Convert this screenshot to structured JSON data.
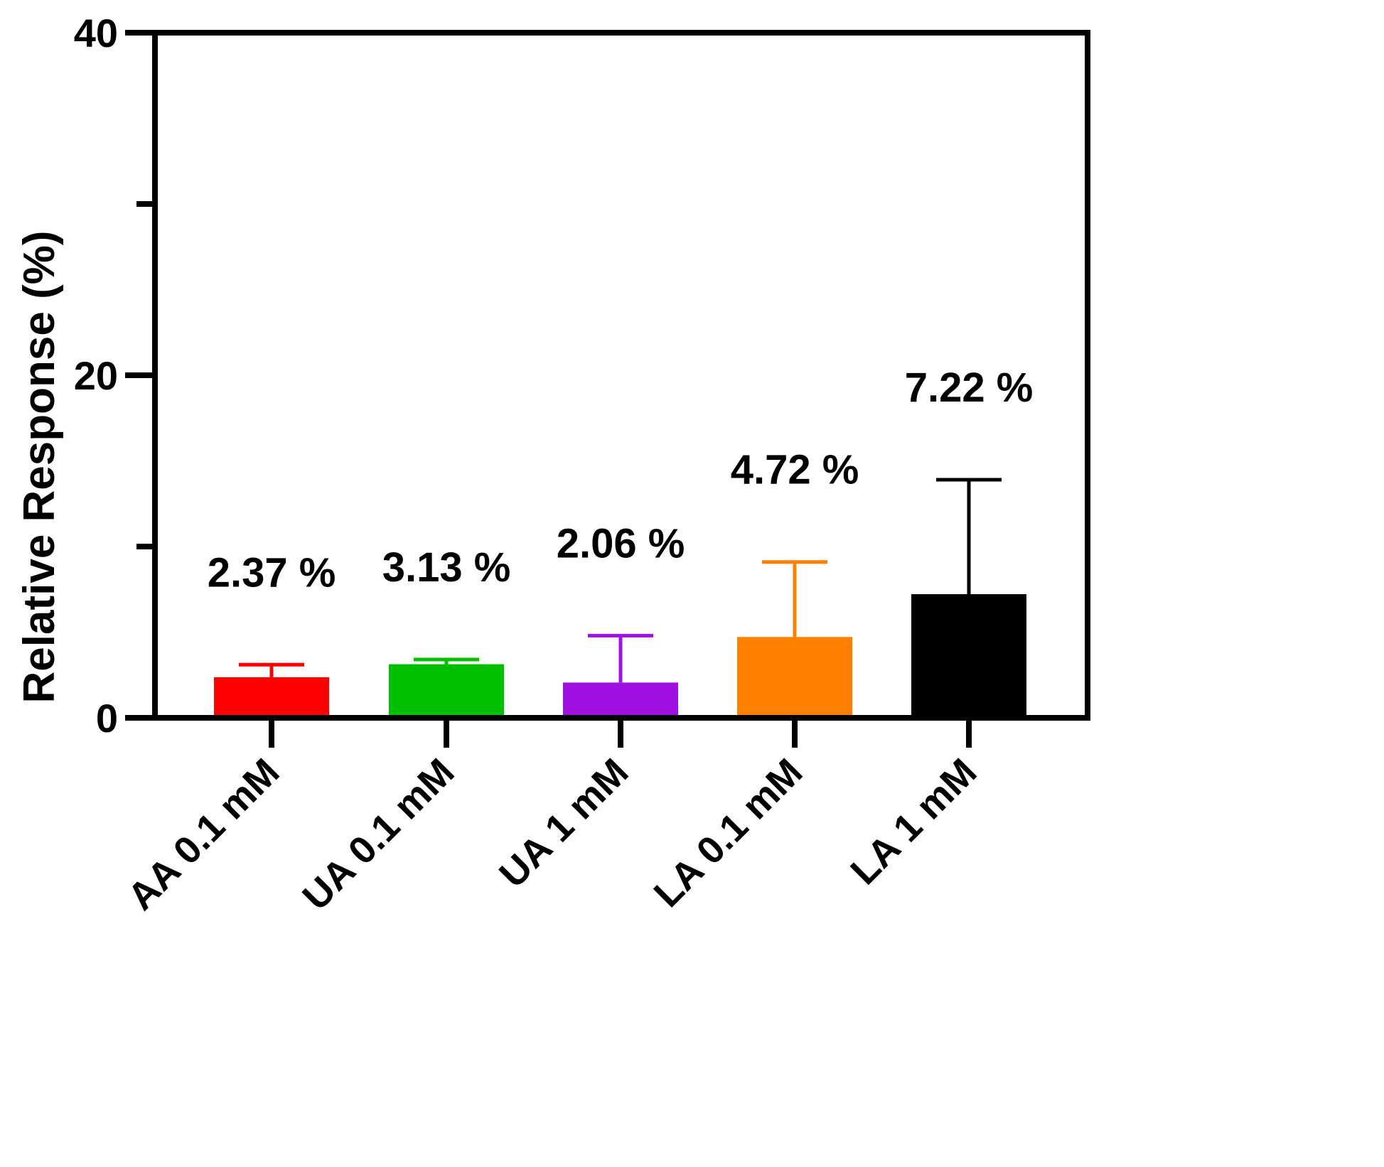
{
  "chart_data": {
    "type": "bar",
    "title": "",
    "xlabel": "",
    "ylabel": "Relative Response (%)",
    "ylim": [
      0,
      40
    ],
    "yticks_major": [
      0,
      20,
      40
    ],
    "yticks_minor": [
      10,
      30
    ],
    "grid": false,
    "categories": [
      "AA 0.1 mM",
      "UA 0.1 mM",
      "UA 1 mM",
      "LA 0.1 mM",
      "LA 1 mM"
    ],
    "values": [
      2.37,
      3.13,
      2.06,
      4.72,
      7.22
    ],
    "error_upper": [
      3.1,
      3.4,
      4.8,
      9.1,
      13.9
    ],
    "value_labels": [
      "2.37 %",
      "3.13 %",
      "2.06 %",
      "4.72 %",
      "7.22 %"
    ],
    "colors": [
      "#ff0000",
      "#00c000",
      "#a010e0",
      "#ff8000",
      "#000000"
    ]
  }
}
